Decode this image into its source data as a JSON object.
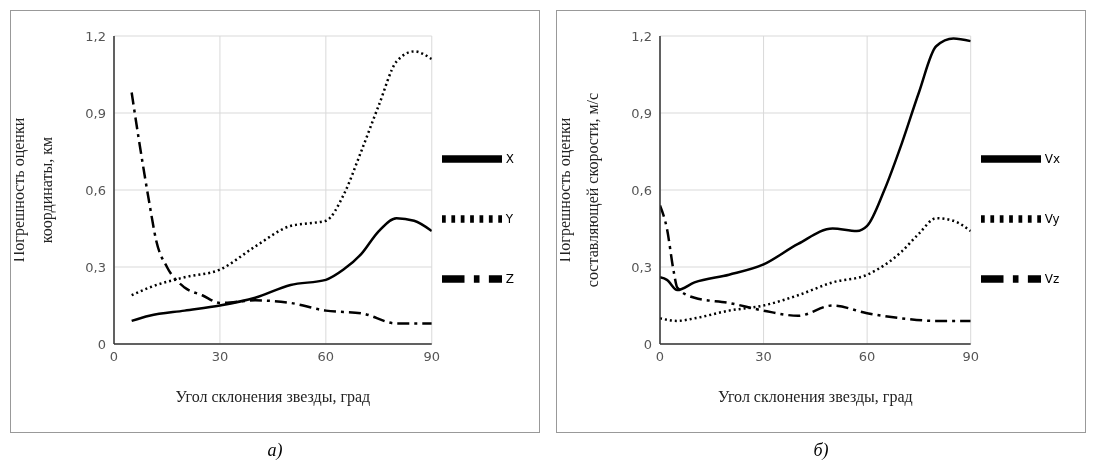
{
  "chart_data": [
    {
      "type": "line",
      "xlabel": "Угол склонения звезды, град",
      "ylabel": "Погрешность оценки координаты, км",
      "annotations": [
        "а)"
      ],
      "xlim": [
        0,
        90
      ],
      "xticks": [
        0,
        30,
        60,
        90
      ],
      "ylim": [
        0,
        1.2
      ],
      "yticks": [
        {
          "value": 0,
          "label": "0"
        },
        {
          "value": 0.3,
          "label": "0,3"
        },
        {
          "value": 0.6,
          "label": "0,6"
        },
        {
          "value": 0.9,
          "label": "0,9"
        },
        {
          "value": 1.2,
          "label": "1,2"
        }
      ],
      "grid": true,
      "legend": "right",
      "marker": "none",
      "series": [
        {
          "name": "X",
          "color": "#000000",
          "line_style": "solid",
          "x": [
            5,
            10,
            20,
            30,
            40,
            50,
            60,
            65,
            70,
            75,
            80,
            85,
            90
          ],
          "values": [
            0.09,
            0.11,
            0.13,
            0.15,
            0.18,
            0.23,
            0.25,
            0.29,
            0.35,
            0.44,
            0.49,
            0.48,
            0.44
          ]
        },
        {
          "name": "Y",
          "color": "#000000",
          "line_style": "dotted",
          "x": [
            5,
            10,
            20,
            30,
            40,
            50,
            55,
            60,
            65,
            70,
            75,
            80,
            85,
            90
          ],
          "values": [
            0.19,
            0.22,
            0.26,
            0.29,
            0.38,
            0.46,
            0.47,
            0.48,
            0.58,
            0.75,
            0.93,
            1.1,
            1.14,
            1.11
          ]
        },
        {
          "name": "Z",
          "color": "#000000",
          "line_style": "dashed",
          "x": [
            5,
            7,
            10,
            12,
            15,
            20,
            25,
            30,
            40,
            50,
            60,
            70,
            80,
            90
          ],
          "values": [
            0.98,
            0.8,
            0.55,
            0.4,
            0.3,
            0.22,
            0.19,
            0.16,
            0.17,
            0.16,
            0.13,
            0.12,
            0.08,
            0.08
          ]
        }
      ]
    },
    {
      "type": "line",
      "xlabel": "Угол склонения звезды, град",
      "ylabel": "Погрешность оценки составляющей скорости, м/с",
      "annotations": [
        "б)"
      ],
      "xlim": [
        0,
        90
      ],
      "xticks": [
        0,
        30,
        60,
        90
      ],
      "ylim": [
        0,
        1.2
      ],
      "yticks": [
        {
          "value": 0,
          "label": "0"
        },
        {
          "value": 0.3,
          "label": "0,3"
        },
        {
          "value": 0.6,
          "label": "0,6"
        },
        {
          "value": 0.9,
          "label": "0,9"
        },
        {
          "value": 1.2,
          "label": "1,2"
        }
      ],
      "grid": true,
      "legend": "right",
      "marker": "none",
      "series": [
        {
          "name": "Vx",
          "color": "#000000",
          "line_style": "solid",
          "x": [
            0,
            2,
            5,
            10,
            20,
            30,
            40,
            50,
            57,
            60,
            65,
            70,
            75,
            80,
            85,
            90
          ],
          "values": [
            0.26,
            0.25,
            0.21,
            0.24,
            0.27,
            0.31,
            0.39,
            0.45,
            0.44,
            0.46,
            0.6,
            0.78,
            0.98,
            1.16,
            1.19,
            1.18
          ]
        },
        {
          "name": "Vy",
          "color": "#000000",
          "line_style": "dotted",
          "x": [
            0,
            5,
            10,
            20,
            30,
            40,
            50,
            60,
            70,
            75,
            80,
            85,
            90
          ],
          "values": [
            0.1,
            0.09,
            0.1,
            0.13,
            0.15,
            0.19,
            0.24,
            0.27,
            0.36,
            0.43,
            0.49,
            0.48,
            0.44
          ]
        },
        {
          "name": "Vz",
          "color": "#000000",
          "line_style": "dashed",
          "x": [
            0,
            2,
            4,
            5,
            10,
            20,
            30,
            40,
            50,
            60,
            70,
            80,
            90
          ],
          "values": [
            0.54,
            0.45,
            0.28,
            0.22,
            0.18,
            0.16,
            0.13,
            0.11,
            0.15,
            0.12,
            0.1,
            0.09,
            0.09
          ]
        }
      ]
    }
  ]
}
